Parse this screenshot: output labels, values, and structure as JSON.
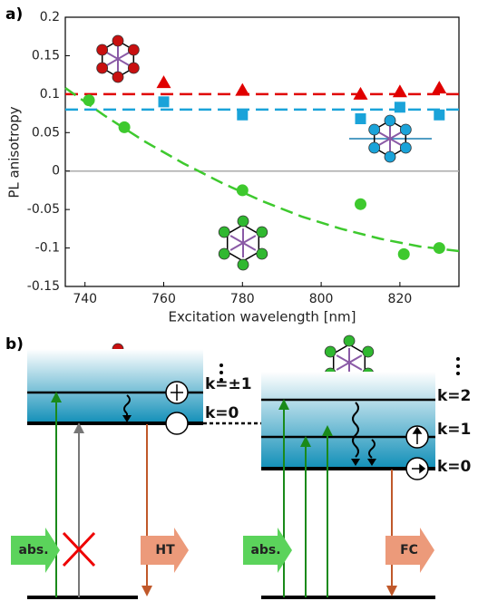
{
  "chart_data": {
    "type": "scatter",
    "panel_label": "a)",
    "xlabel": "Excitation wavelength [nm]",
    "ylabel": "PL anisotropy",
    "xlim": [
      735,
      835
    ],
    "ylim": [
      -0.15,
      0.2
    ],
    "xticks": [
      740,
      760,
      780,
      800,
      820
    ],
    "yticks": [
      -0.15,
      -0.1,
      -0.05,
      0,
      0.05,
      0.1,
      0.15,
      0.2
    ],
    "zero_line": true,
    "series": [
      {
        "marker": "triangle",
        "color": "#e00000",
        "x": [
          760,
          780,
          810,
          820,
          830
        ],
        "values": [
          0.115,
          0.105,
          0.1,
          0.103,
          0.108
        ]
      },
      {
        "marker": "square",
        "color": "#1aa3d9",
        "x": [
          760,
          780,
          810,
          820,
          830
        ],
        "values": [
          0.09,
          0.073,
          0.068,
          0.083,
          0.073
        ]
      },
      {
        "marker": "circle",
        "color": "#3ec92e",
        "x": [
          741,
          750,
          780,
          810,
          821,
          830
        ],
        "values": [
          0.092,
          0.057,
          -0.025,
          -0.043,
          -0.108,
          -0.1
        ]
      }
    ],
    "fits": [
      {
        "color": "#e00000",
        "x": [
          735,
          835
        ],
        "values": [
          0.1,
          0.1
        ]
      },
      {
        "color": "#1aa3d9",
        "x": [
          735,
          835
        ],
        "values": [
          0.08,
          0.08
        ]
      },
      {
        "color": "#3ec92e",
        "x": [
          735,
          745,
          755,
          765,
          775,
          785,
          795,
          805,
          815,
          825,
          835
        ],
        "values": [
          0.108,
          0.072,
          0.039,
          0.01,
          -0.016,
          -0.039,
          -0.059,
          -0.075,
          -0.088,
          -0.098,
          -0.104
        ]
      }
    ]
  },
  "diagram": {
    "panel_label": "b)",
    "left": {
      "levels": [
        "k=±1",
        "k=0"
      ],
      "absorption": "abs.",
      "emission": "HT"
    },
    "right": {
      "levels": [
        "k=2",
        "k=1",
        "k=0"
      ],
      "absorption": "abs.",
      "emission": "FC"
    }
  }
}
